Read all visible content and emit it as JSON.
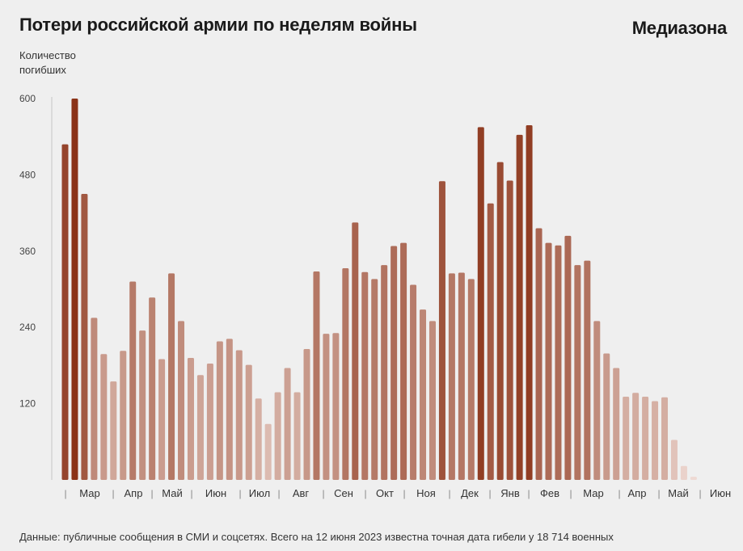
{
  "header": {
    "title": "Потери российской армии по неделям войны",
    "brand": "Медиазона"
  },
  "y_axis_label": [
    "Количество",
    "погибших"
  ],
  "footer": {
    "note": "Данные: публичные сообщения в СМИ и соцсетях. Всего на 12 июня 2023 известна точная дата гибели у 18 714 военных"
  },
  "chart_data": {
    "type": "bar",
    "ylabel": "Количество погибших",
    "ylim": [
      0,
      600
    ],
    "yticks": [
      120,
      240,
      360,
      480,
      600
    ],
    "grid": false,
    "color_scale": {
      "low": "#f0dcd6",
      "high": "#8b3318"
    },
    "month_labels": [
      "Мар",
      "Апр",
      "Май",
      "Июн",
      "Июл",
      "Авг",
      "Сен",
      "Окт",
      "Ноя",
      "Дек",
      "Янв",
      "Фев",
      "Мар",
      "Апр",
      "Май",
      "Июн"
    ],
    "values": [
      528,
      600,
      450,
      255,
      198,
      155,
      203,
      312,
      235,
      287,
      190,
      325,
      250,
      192,
      165,
      183,
      218,
      222,
      204,
      181,
      128,
      88,
      138,
      176,
      138,
      206,
      328,
      230,
      231,
      333,
      405,
      327,
      316,
      338,
      368,
      373,
      307,
      268,
      250,
      470,
      325,
      326,
      316,
      555,
      435,
      500,
      471,
      543,
      558,
      396,
      373,
      369,
      384,
      338,
      345,
      250,
      199,
      176,
      131,
      137,
      131,
      124,
      130,
      63,
      22,
      5
    ]
  }
}
